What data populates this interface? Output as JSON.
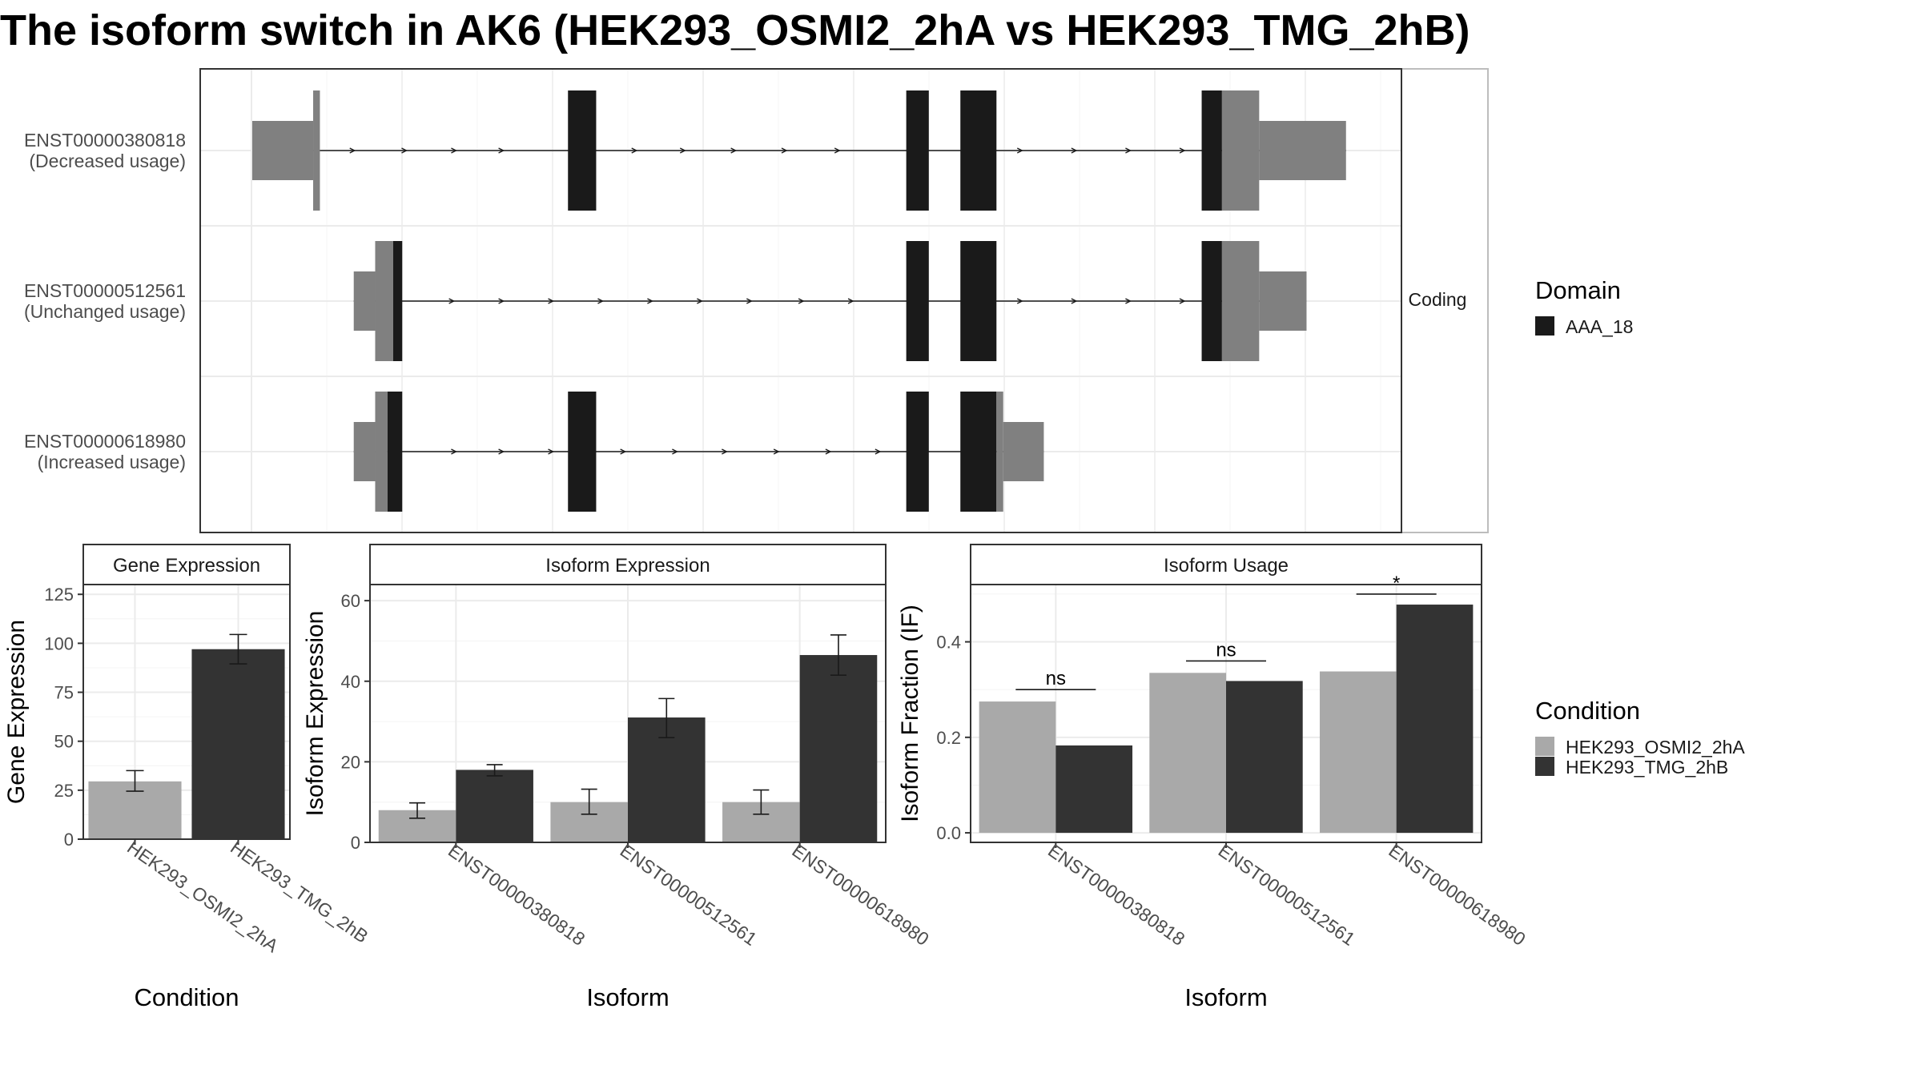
{
  "title": "The isoform switch in AK6 (HEK293_OSMI2_2hA vs HEK293_TMG_2hB)",
  "colors": {
    "condition_a": "#a9a9a9",
    "condition_b": "#333333",
    "domain": "#1a1a1a",
    "utr": "#808080",
    "panel_border": "#333333",
    "strip_fill": "#ffffff",
    "grid": "#ebebeb"
  },
  "legends": {
    "domain": {
      "title": "Domain",
      "items": [
        "AAA_18"
      ]
    },
    "condition": {
      "title": "Condition",
      "items": [
        "HEK293_OSMI2_2hA",
        "HEK293_TMG_2hB"
      ]
    }
  },
  "chart_data": [
    {
      "type": "gene-structure",
      "facet_label": "Coding",
      "transcripts": [
        {
          "id": "ENST00000380818",
          "status": "(Decreased usage)",
          "segments": [
            {
              "kind": "utr",
              "start": 0,
              "end": 54
            },
            {
              "kind": "utr-thick",
              "start": 54,
              "end": 60
            },
            {
              "kind": "domain",
              "start": 280,
              "end": 305
            },
            {
              "kind": "domain",
              "start": 580,
              "end": 600
            },
            {
              "kind": "domain",
              "start": 628,
              "end": 660
            },
            {
              "kind": "domain",
              "start": 842,
              "end": 860
            },
            {
              "kind": "utr-thick",
              "start": 860,
              "end": 893
            },
            {
              "kind": "utr",
              "start": 893,
              "end": 970
            }
          ],
          "arrows": [
            90,
            136,
            180,
            222,
            340,
            383,
            428,
            473,
            520,
            682,
            730,
            778,
            826
          ]
        },
        {
          "id": "ENST00000512561",
          "status": "(Unchanged usage)",
          "segments": [
            {
              "kind": "utr",
              "start": 90,
              "end": 109
            },
            {
              "kind": "utr-thick",
              "start": 109,
              "end": 125
            },
            {
              "kind": "domain",
              "start": 125,
              "end": 133
            },
            {
              "kind": "domain",
              "start": 580,
              "end": 600
            },
            {
              "kind": "domain",
              "start": 628,
              "end": 660
            },
            {
              "kind": "domain",
              "start": 842,
              "end": 860
            },
            {
              "kind": "utr-thick",
              "start": 860,
              "end": 893
            },
            {
              "kind": "utr",
              "start": 893,
              "end": 935
            }
          ],
          "arrows": [
            178,
            222,
            266,
            310,
            354,
            398,
            442,
            488,
            532,
            682,
            730,
            778,
            826
          ]
        },
        {
          "id": "ENST00000618980",
          "status": "(Increased usage)",
          "segments": [
            {
              "kind": "utr",
              "start": 90,
              "end": 109
            },
            {
              "kind": "utr-thick",
              "start": 109,
              "end": 120
            },
            {
              "kind": "domain",
              "start": 120,
              "end": 133
            },
            {
              "kind": "domain",
              "start": 280,
              "end": 305
            },
            {
              "kind": "domain",
              "start": 580,
              "end": 600
            },
            {
              "kind": "domain",
              "start": 628,
              "end": 660
            },
            {
              "kind": "utr-thick",
              "start": 660,
              "end": 666
            },
            {
              "kind": "utr",
              "start": 666,
              "end": 702
            }
          ],
          "arrows": [
            180,
            222,
            266,
            330,
            376,
            420,
            466,
            512,
            556
          ]
        }
      ]
    },
    {
      "type": "bar",
      "title": "Gene Expression",
      "xlabel": "Condition",
      "ylabel": "Gene Expression",
      "ylim": [
        0,
        130
      ],
      "yticks": [
        0,
        25,
        50,
        75,
        100,
        125
      ],
      "categories": [
        "HEK293_OSMI2_2hA",
        "HEK293_TMG_2hB"
      ],
      "values": [
        29.5,
        97
      ],
      "errors": [
        [
          24.5,
          35
        ],
        [
          89.5,
          104.5
        ]
      ],
      "grid": true
    },
    {
      "type": "bar",
      "title": "Isoform Expression",
      "xlabel": "Isoform",
      "ylabel": "Isoform Expression",
      "ylim": [
        0,
        64
      ],
      "yticks": [
        0,
        20,
        40,
        60
      ],
      "categories": [
        "ENST00000380818",
        "ENST00000512561",
        "ENST00000618980"
      ],
      "series": [
        {
          "name": "HEK293_OSMI2_2hA",
          "values": [
            8,
            10,
            10
          ],
          "errors": [
            [
              6,
              9.8
            ],
            [
              7,
              13.2
            ],
            [
              7,
              13
            ]
          ]
        },
        {
          "name": "HEK293_TMG_2hB",
          "values": [
            18,
            31,
            46.5
          ],
          "errors": [
            [
              16.5,
              19.3
            ],
            [
              26,
              35.7
            ],
            [
              41.5,
              51.5
            ]
          ]
        }
      ],
      "grid": true
    },
    {
      "type": "bar",
      "title": "Isoform Usage",
      "xlabel": "Isoform",
      "ylabel": "Isoform Fraction (IF)",
      "ylim": [
        -0.02,
        0.52
      ],
      "yticks": [
        0.0,
        0.2,
        0.4
      ],
      "ytick_labels": [
        "0.0",
        "0.2",
        "0.4"
      ],
      "categories": [
        "ENST00000380818",
        "ENST00000512561",
        "ENST00000618980"
      ],
      "series": [
        {
          "name": "HEK293_OSMI2_2hA",
          "values": [
            0.275,
            0.335,
            0.338
          ]
        },
        {
          "name": "HEK293_TMG_2hB",
          "values": [
            0.183,
            0.318,
            0.478
          ]
        }
      ],
      "significance": [
        {
          "label": "ns",
          "y": 0.3
        },
        {
          "label": "ns",
          "y": 0.36
        },
        {
          "label": "*",
          "y": 0.5
        }
      ],
      "grid": true
    }
  ]
}
